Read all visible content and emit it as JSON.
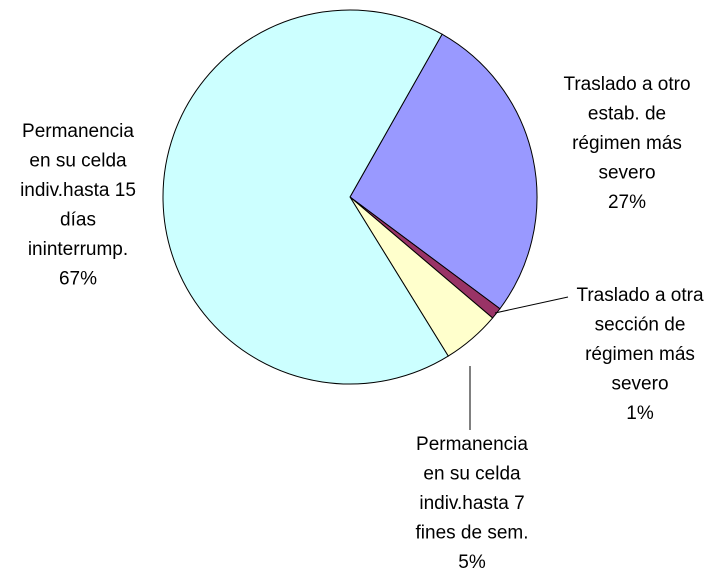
{
  "chart_data": {
    "type": "pie",
    "categories": [
      [
        "Traslado a otro",
        "estab. de",
        "régimen más",
        "severo"
      ],
      [
        "Traslado a otra",
        "sección de",
        "régimen más",
        "severo"
      ],
      [
        "Permanencia",
        "en su celda",
        "indiv.hasta 7",
        "fines de sem."
      ],
      [
        "Permanencia",
        "en su celda",
        "indiv.hasta 15",
        "días",
        "ininterrump."
      ]
    ],
    "values": [
      27,
      1,
      5,
      67
    ],
    "value_labels": [
      "27%",
      "1%",
      "5%",
      "67%"
    ],
    "colors": [
      "#9999ff",
      "#993366",
      "#ffffcc",
      "#ccffff"
    ]
  }
}
